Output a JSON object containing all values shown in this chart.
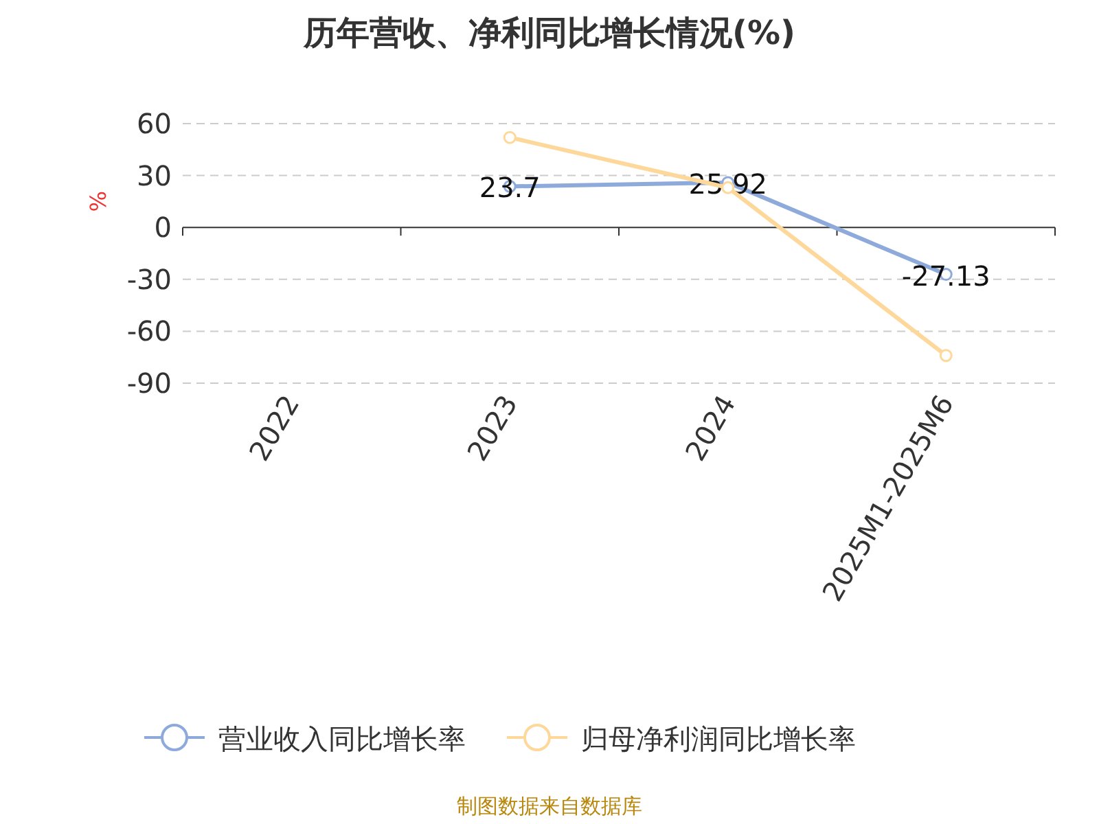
{
  "chart_data": {
    "type": "line",
    "title": "历年营收、净利同比增长情况(%)",
    "ylabel": "%",
    "categories": [
      "2022",
      "2023",
      "2024",
      "2025M1-2025M6"
    ],
    "series": [
      {
        "name": "营业收入同比增长率",
        "color": "#8eaadb",
        "values": [
          null,
          23.7,
          25.92,
          -27.13
        ],
        "value_labels": [
          null,
          "23.7",
          "25.92",
          "-27.13"
        ]
      },
      {
        "name": "归母净利润同比增长率",
        "color": "#fdd89a",
        "values": [
          null,
          52,
          23,
          -74
        ]
      }
    ],
    "ylim": [
      -90,
      60
    ],
    "yticks": [
      -90,
      -60,
      -30,
      0,
      30,
      60
    ],
    "grid": "y",
    "legend": "bottom",
    "marker": "circle",
    "line_style": "solid",
    "annotations": [
      "制图数据来自数据库"
    ]
  }
}
